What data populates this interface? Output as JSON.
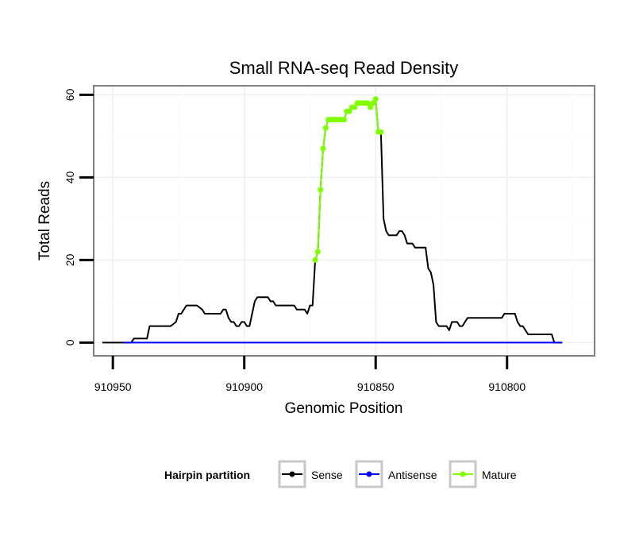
{
  "chart_data": {
    "type": "line",
    "title": "Small RNA-seq Read Density",
    "xlabel": "Genomic Position",
    "ylabel": "Total Reads",
    "xlim": [
      910957,
      910767
    ],
    "x_reversed": true,
    "ylim": [
      -3,
      62
    ],
    "xticks": [
      910950,
      910900,
      910850,
      910800
    ],
    "xtick_labels": [
      "910950",
      "910900",
      "910850",
      "910800"
    ],
    "yticks": [
      0,
      20,
      40,
      60
    ],
    "ytick_labels": [
      "0",
      "20",
      "40",
      "60"
    ],
    "grid": true,
    "legend": {
      "title": "Hairpin partition",
      "position": "bottom",
      "entries": [
        "Sense",
        "Antisense",
        "Mature"
      ]
    },
    "series": [
      {
        "name": "Sense",
        "color": "#000000",
        "points": [
          [
            910954,
            0
          ],
          [
            910943,
            0
          ],
          [
            910942,
            1
          ],
          [
            910937,
            1
          ],
          [
            910936,
            4
          ],
          [
            910928,
            4
          ],
          [
            910926,
            5
          ],
          [
            910925,
            7
          ],
          [
            910924,
            7
          ],
          [
            910923,
            8
          ],
          [
            910922,
            9
          ],
          [
            910918,
            9
          ],
          [
            910916,
            8
          ],
          [
            910915,
            7
          ],
          [
            910909,
            7
          ],
          [
            910908,
            8
          ],
          [
            910907,
            8
          ],
          [
            910906,
            6
          ],
          [
            910905,
            5
          ],
          [
            910904,
            5
          ],
          [
            910903,
            4
          ],
          [
            910902,
            4
          ],
          [
            910901,
            5
          ],
          [
            910900,
            5
          ],
          [
            910899,
            4
          ],
          [
            910898,
            4
          ],
          [
            910897,
            7
          ],
          [
            910896,
            10
          ],
          [
            910895,
            11
          ],
          [
            910891,
            11
          ],
          [
            910890,
            10
          ],
          [
            910889,
            10
          ],
          [
            910888,
            9
          ],
          [
            910881,
            9
          ],
          [
            910880,
            8
          ],
          [
            910877,
            8
          ],
          [
            910876,
            7
          ],
          [
            910875,
            9
          ],
          [
            910874,
            9
          ],
          [
            910873,
            20
          ],
          [
            910872,
            22
          ],
          [
            910871,
            37
          ],
          [
            910870,
            47
          ],
          [
            910869,
            52
          ],
          [
            910868,
            54
          ],
          [
            910862,
            54
          ],
          [
            910861,
            56
          ],
          [
            910860,
            56
          ],
          [
            910859,
            57
          ],
          [
            910858,
            57
          ],
          [
            910857,
            58
          ],
          [
            910853,
            58
          ],
          [
            910852,
            57
          ],
          [
            910851,
            58
          ],
          [
            910850,
            59
          ],
          [
            910849,
            51
          ],
          [
            910848,
            51
          ],
          [
            910847,
            30
          ],
          [
            910846,
            27
          ],
          [
            910845,
            26
          ],
          [
            910842,
            26
          ],
          [
            910841,
            27
          ],
          [
            910840,
            27
          ],
          [
            910839,
            26
          ],
          [
            910838,
            24
          ],
          [
            910836,
            24
          ],
          [
            910835,
            23
          ],
          [
            910831,
            23
          ],
          [
            910830,
            18
          ],
          [
            910829,
            17
          ],
          [
            910828,
            14
          ],
          [
            910827,
            5
          ],
          [
            910826,
            4
          ],
          [
            910823,
            4
          ],
          [
            910822,
            3
          ],
          [
            910821,
            5
          ],
          [
            910819,
            5
          ],
          [
            910818,
            4
          ],
          [
            910817,
            4
          ],
          [
            910815,
            6
          ],
          [
            910802,
            6
          ],
          [
            910801,
            7
          ],
          [
            910797,
            7
          ],
          [
            910796,
            5
          ],
          [
            910795,
            4
          ],
          [
            910794,
            4
          ],
          [
            910792,
            2
          ],
          [
            910783,
            2
          ],
          [
            910782,
            0
          ],
          [
            910779,
            0
          ]
        ]
      },
      {
        "name": "Antisense",
        "color": "#0000ff",
        "points": [
          [
            910946,
            0
          ],
          [
            910779,
            0
          ]
        ]
      },
      {
        "name": "Mature",
        "color": "#7fff00",
        "points": [
          [
            910873,
            20
          ],
          [
            910872,
            22
          ],
          [
            910871,
            37
          ],
          [
            910870,
            47
          ],
          [
            910869,
            52
          ],
          [
            910868,
            54
          ],
          [
            910867,
            54
          ],
          [
            910866,
            54
          ],
          [
            910865,
            54
          ],
          [
            910864,
            54
          ],
          [
            910863,
            54
          ],
          [
            910862,
            54
          ],
          [
            910861,
            56
          ],
          [
            910860,
            56
          ],
          [
            910859,
            57
          ],
          [
            910858,
            57
          ],
          [
            910857,
            58
          ],
          [
            910856,
            58
          ],
          [
            910855,
            58
          ],
          [
            910854,
            58
          ],
          [
            910853,
            58
          ],
          [
            910852,
            57
          ],
          [
            910851,
            58
          ],
          [
            910850,
            59
          ],
          [
            910849,
            51
          ],
          [
            910848,
            51
          ]
        ]
      }
    ]
  }
}
